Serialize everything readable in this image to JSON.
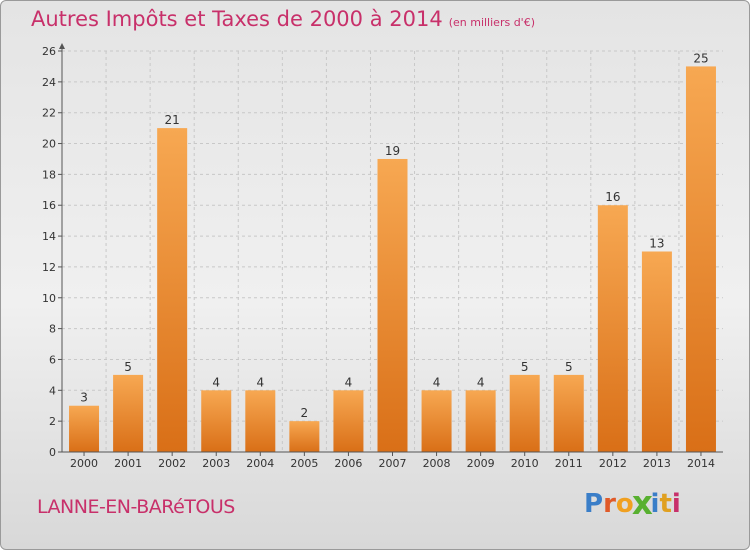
{
  "header": {
    "title": "Autres Impôts et Taxes de 2000 à 2014",
    "unit": "(en milliers d'€)"
  },
  "footer": {
    "commune": "LANNE-EN-BARéTOUS",
    "logo": "Proxiti"
  },
  "colors": {
    "bar_light": "#f7a852",
    "bar_dark": "#d96f17",
    "title": "#c8306a"
  },
  "chart_data": {
    "type": "bar",
    "title": "Autres Impôts et Taxes de 2000 à 2014",
    "xlabel": "",
    "ylabel": "",
    "categories": [
      "2000",
      "2001",
      "2002",
      "2003",
      "2004",
      "2005",
      "2006",
      "2007",
      "2008",
      "2009",
      "2010",
      "2011",
      "2012",
      "2013",
      "2014"
    ],
    "values": [
      3,
      5,
      21,
      4,
      4,
      2,
      4,
      19,
      4,
      4,
      5,
      5,
      16,
      13,
      25
    ],
    "ylim": [
      0,
      26
    ],
    "yticks": [
      0,
      2,
      4,
      6,
      8,
      10,
      12,
      14,
      16,
      18,
      20,
      22,
      24,
      26
    ],
    "grid": true
  }
}
